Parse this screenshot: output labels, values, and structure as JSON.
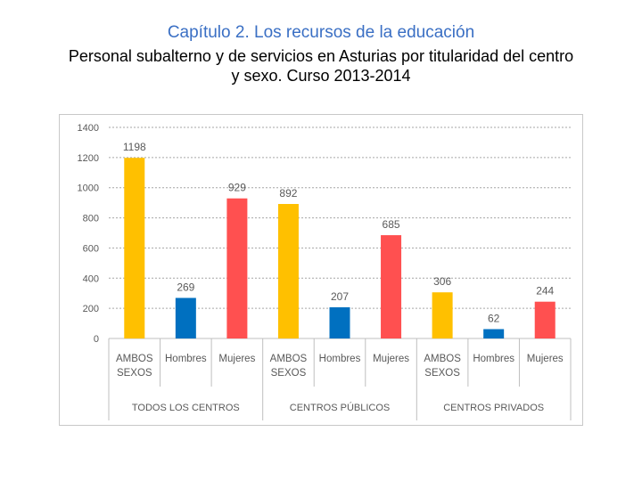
{
  "header": {
    "title": "Capítulo 2. Los recursos de la educación",
    "subtitle_line1": "Personal subalterno y de servicios en Asturias por titularidad del centro",
    "subtitle_line2": "y sexo. Curso 2013-2014"
  },
  "colors": {
    "ambos": "#ffc000",
    "hombres": "#0070c0",
    "mujeres": "#ff5050"
  },
  "chart_data": {
    "type": "bar",
    "title": "Personal subalterno y de servicios en Asturias por titularidad del centro y sexo. Curso 2013-2014",
    "ylim": [
      0,
      1400
    ],
    "yticks": [
      0,
      200,
      400,
      600,
      800,
      1000,
      1200,
      1400
    ],
    "grid": true,
    "groups": [
      "TODOS LOS CENTROS",
      "CENTROS PÚBLICOS",
      "CENTROS PRIVADOS"
    ],
    "categories": [
      {
        "group": "TODOS LOS CENTROS",
        "label_line1": "AMBOS",
        "label_line2": "SEXOS",
        "value": 1198,
        "color_key": "ambos"
      },
      {
        "group": "TODOS LOS CENTROS",
        "label_line1": "Hombres",
        "label_line2": "",
        "value": 269,
        "color_key": "hombres"
      },
      {
        "group": "TODOS LOS CENTROS",
        "label_line1": "Mujeres",
        "label_line2": "",
        "value": 929,
        "color_key": "mujeres"
      },
      {
        "group": "CENTROS PÚBLICOS",
        "label_line1": "AMBOS",
        "label_line2": "SEXOS",
        "value": 892,
        "color_key": "ambos"
      },
      {
        "group": "CENTROS PÚBLICOS",
        "label_line1": "Hombres",
        "label_line2": "",
        "value": 207,
        "color_key": "hombres"
      },
      {
        "group": "CENTROS PÚBLICOS",
        "label_line1": "Mujeres",
        "label_line2": "",
        "value": 685,
        "color_key": "mujeres"
      },
      {
        "group": "CENTROS PRIVADOS",
        "label_line1": "AMBOS",
        "label_line2": "SEXOS",
        "value": 306,
        "color_key": "ambos"
      },
      {
        "group": "CENTROS PRIVADOS",
        "label_line1": "Hombres",
        "label_line2": "",
        "value": 62,
        "color_key": "hombres"
      },
      {
        "group": "CENTROS PRIVADOS",
        "label_line1": "Mujeres",
        "label_line2": "",
        "value": 244,
        "color_key": "mujeres"
      }
    ]
  }
}
